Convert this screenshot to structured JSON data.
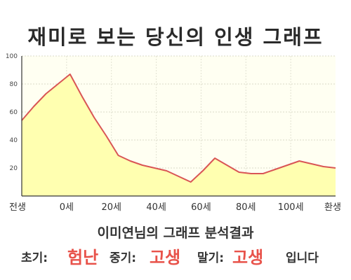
{
  "title": "재미로 보는 당신의 인생 그래프",
  "subtitle": "이미연님의 그래프 분석결과",
  "result": {
    "early_label": "초기:",
    "early_value": "험난",
    "middle_label": "중기:",
    "middle_value": "고생",
    "late_label": "말기:",
    "late_value": "고생",
    "ending": "입니다"
  },
  "colors": {
    "area_fill": "#ffffb0",
    "line": "#d95555",
    "plot_bg": "#fffff2",
    "highlight": "#e8524a"
  },
  "chart_data": {
    "type": "area",
    "title": "재미로 보는 당신의 인생 그래프",
    "x_tick_labels": [
      "전생",
      "0세",
      "20세",
      "40세",
      "60세",
      "80세",
      "100세",
      "환생"
    ],
    "y_ticks": [
      20,
      40,
      60,
      80,
      100
    ],
    "ylim": [
      0,
      100
    ],
    "grid": true,
    "series": [
      {
        "values": [
          54,
          64,
          73,
          80,
          87,
          71,
          56,
          43,
          29,
          25,
          22,
          20,
          18,
          14,
          10,
          18,
          27,
          22,
          17,
          16,
          16,
          19,
          22,
          25,
          23,
          21,
          20
        ]
      }
    ]
  }
}
